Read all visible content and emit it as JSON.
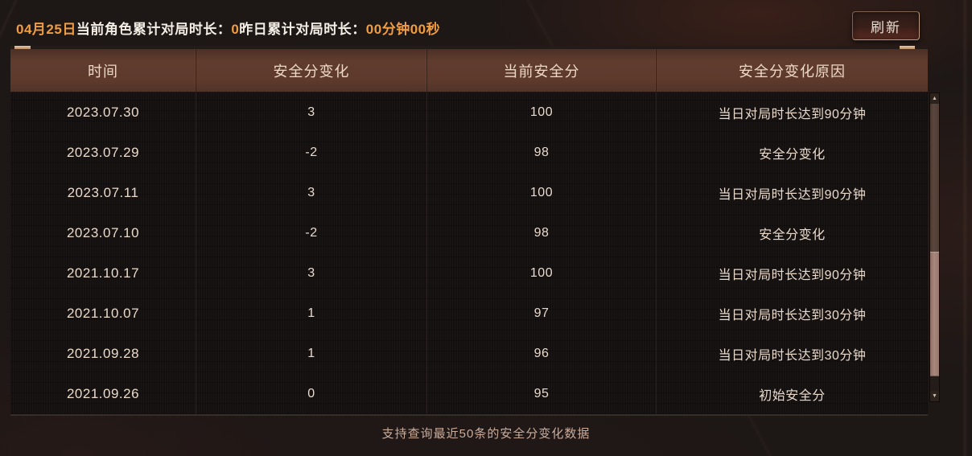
{
  "top_bar": {
    "segments": [
      {
        "text": "04月25日",
        "style": "accent"
      },
      {
        "text": "当前角色累计对局时长：",
        "style": "plain"
      },
      {
        "text": "0",
        "style": "accent"
      },
      {
        "text": "昨日累计对局时长：",
        "style": "plain"
      },
      {
        "text": "00分钟00秒",
        "style": "accent"
      }
    ],
    "refresh_label": "刷新"
  },
  "table": {
    "columns": [
      "时间",
      "安全分变化",
      "当前安全分",
      "安全分变化原因"
    ],
    "rows": [
      {
        "date": "2023.07.30",
        "change": "3",
        "score": "100",
        "reason": "当日对局时长达到90分钟"
      },
      {
        "date": "2023.07.29",
        "change": "-2",
        "score": "98",
        "reason": "安全分变化"
      },
      {
        "date": "2023.07.11",
        "change": "3",
        "score": "100",
        "reason": "当日对局时长达到90分钟"
      },
      {
        "date": "2023.07.10",
        "change": "-2",
        "score": "98",
        "reason": "安全分变化"
      },
      {
        "date": "2021.10.17",
        "change": "3",
        "score": "100",
        "reason": "当日对局时长达到90分钟"
      },
      {
        "date": "2021.10.07",
        "change": "1",
        "score": "97",
        "reason": "当日对局时长达到30分钟"
      },
      {
        "date": "2021.09.28",
        "change": "1",
        "score": "96",
        "reason": "当日对局时长达到30分钟"
      },
      {
        "date": "2021.09.26",
        "change": "0",
        "score": "95",
        "reason": "初始安全分"
      }
    ]
  },
  "scrollbar": {
    "up_icon": "▲",
    "down_icon": "▼"
  },
  "footer": {
    "note": "支持查询最近50条的安全分变化数据"
  },
  "colors": {
    "accent_orange": "#f09d42",
    "plain_text": "#f3ede5",
    "header_bg": "#5e3a2d",
    "header_text": "#edd9c5",
    "body_bg": "#151010",
    "row_text": "#e9dacb",
    "footer_text": "#cbac9b",
    "scroll_thumb": "#a8877c",
    "button_border": "#bc9c80"
  }
}
